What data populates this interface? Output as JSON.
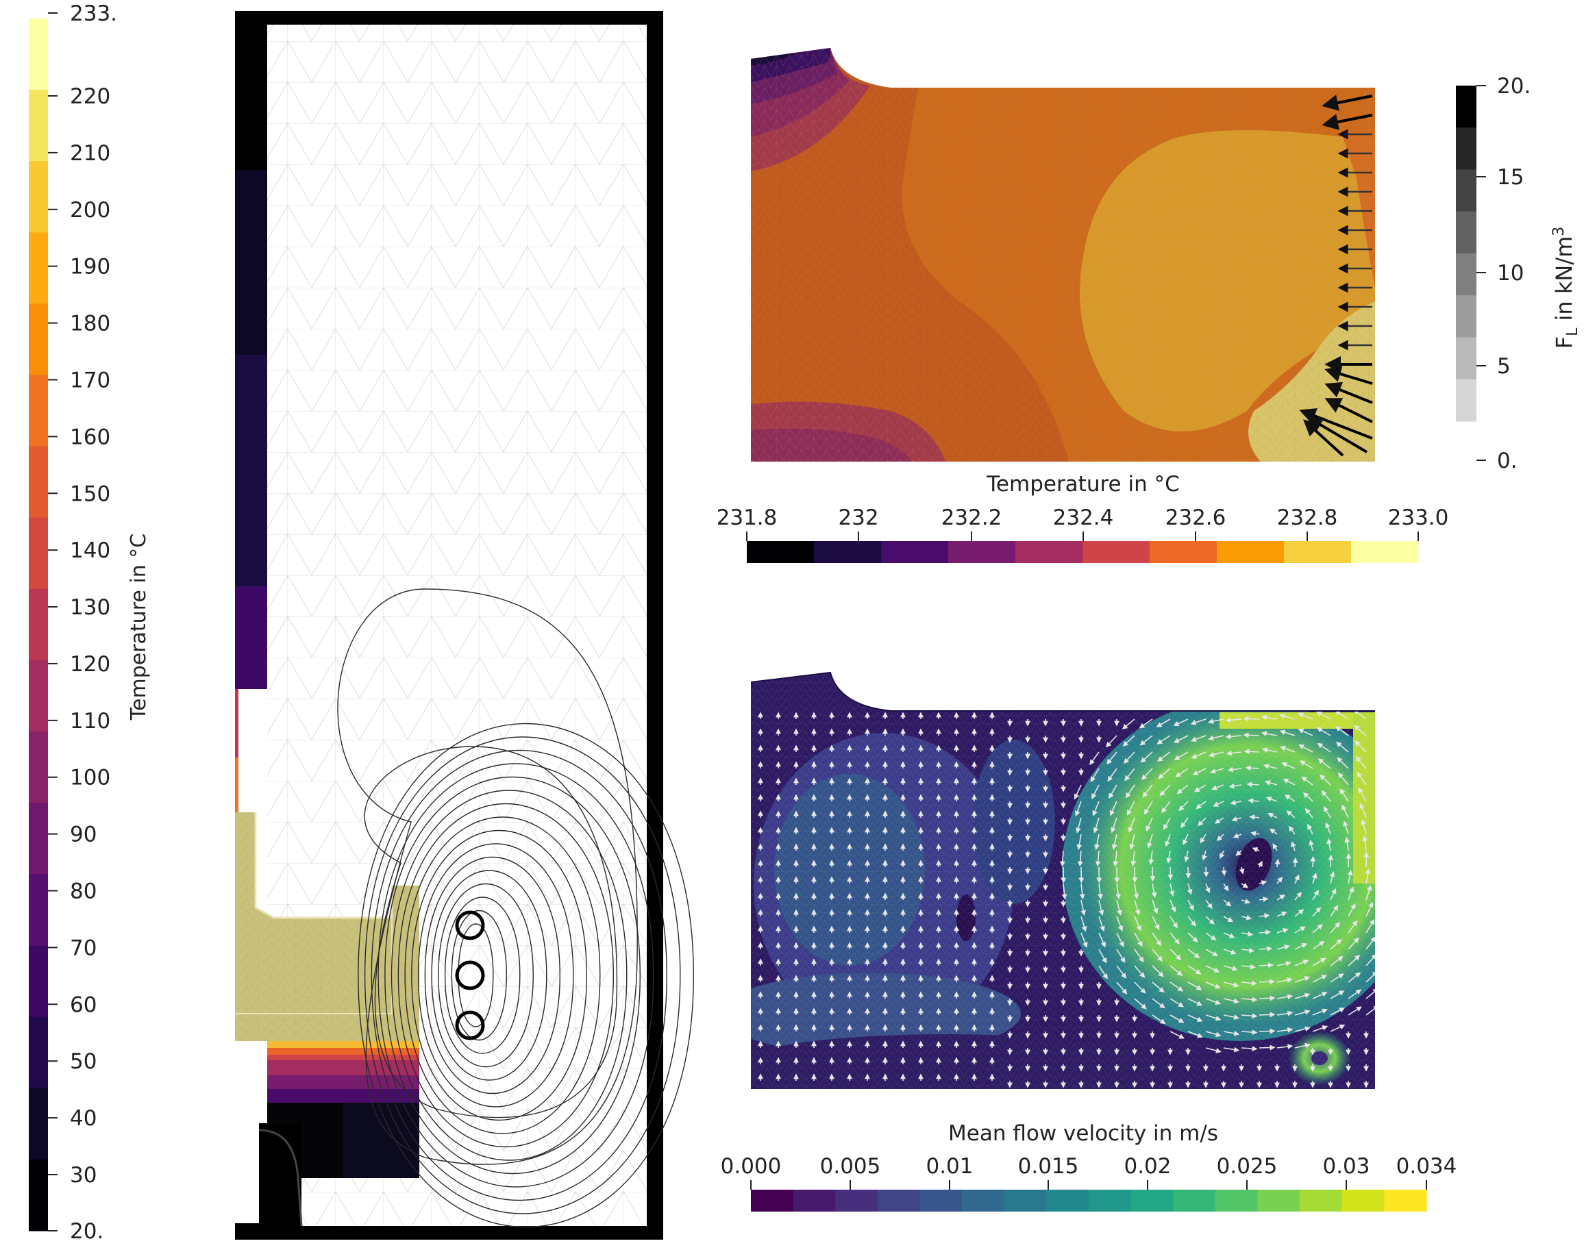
{
  "left_colorbar": {
    "title": "Temperature in °C",
    "ticks": [
      "233.",
      "220",
      "210",
      "200",
      "190",
      "180",
      "170",
      "160",
      "150",
      "140",
      "130",
      "120",
      "110",
      "100",
      "90",
      "80",
      "70",
      "60",
      "50",
      "40",
      "30",
      "20."
    ],
    "colors": [
      "#fcffa4",
      "#f3e55d",
      "#f8c931",
      "#fcaa10",
      "#f98e09",
      "#f17220",
      "#e45a31",
      "#d1493f",
      "#bb3754",
      "#a32c61",
      "#8a226a",
      "#71186e",
      "#57106e",
      "#3d0965",
      "#22094b",
      "#0c0826",
      "#000004"
    ]
  },
  "top_panel": {
    "temp_colorbar": {
      "title": "Temperature in °C",
      "ticks": [
        "231.8",
        "232",
        "232.2",
        "232.4",
        "232.6",
        "232.8",
        "233.0"
      ],
      "colors": [
        "#000004",
        "#1b0c41",
        "#4a0c6b",
        "#781c6d",
        "#a52c60",
        "#cf4446",
        "#ed6925",
        "#fb9b06",
        "#f7d13d",
        "#fcffa4"
      ]
    },
    "force_colorbar": {
      "title": "F_L in kN/m^3",
      "title_main": "F",
      "title_sub": "L",
      "title_unit": " in kN/m",
      "title_sup": "3",
      "ticks": [
        "20.",
        "15",
        "10",
        "5",
        "0."
      ],
      "colors": [
        "#000000",
        "#262626",
        "#444444",
        "#626262",
        "#808080",
        "#9c9c9c",
        "#bababa",
        "#d6d6d6"
      ]
    }
  },
  "bottom_panel": {
    "velocity_colorbar": {
      "title": "Mean flow velocity in m/s",
      "ticks": [
        "0.000",
        "0.005",
        "0.01",
        "0.015",
        "0.02",
        "0.025",
        "0.03",
        "0.034"
      ],
      "colors": [
        "#440154",
        "#481a6c",
        "#472f7d",
        "#414487",
        "#39568c",
        "#31688e",
        "#2a788e",
        "#23888e",
        "#1f988b",
        "#22a884",
        "#35b779",
        "#54c568",
        "#7ad151",
        "#a5db36",
        "#d2e21b",
        "#fde725"
      ]
    }
  }
}
